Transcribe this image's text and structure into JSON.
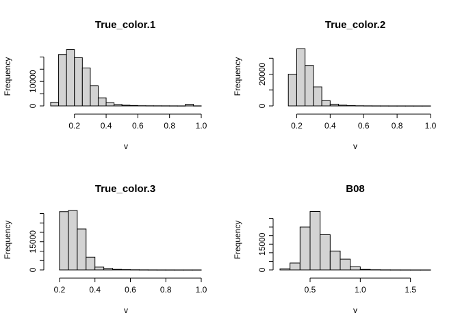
{
  "chart_data": [
    {
      "type": "bar",
      "title": "True_color.1",
      "xlabel": "v",
      "ylabel": "Frequency",
      "bin_edges": [
        0.05,
        0.1,
        0.15,
        0.2,
        0.25,
        0.3,
        0.35,
        0.4,
        0.45,
        0.5,
        0.55,
        0.6,
        0.65,
        0.7,
        0.75,
        0.8,
        0.85,
        0.9,
        0.95,
        1.0
      ],
      "values": [
        1500,
        21000,
        23000,
        19700,
        15500,
        8200,
        3300,
        1300,
        600,
        300,
        180,
        80,
        60,
        50,
        40,
        30,
        20,
        700,
        30
      ],
      "xlim": [
        0.05,
        1.0
      ],
      "x_ticks": [
        0.2,
        0.4,
        0.6,
        0.8,
        1.0
      ],
      "x_tick_labels": [
        "0.2",
        "0.4",
        "0.6",
        "0.8",
        "1.0"
      ],
      "y_ticks": [
        0,
        5000,
        10000,
        15000,
        20000
      ],
      "y_tick_labels": [
        "0",
        "",
        "10000",
        "",
        ""
      ],
      "ylim": [
        0,
        24000
      ]
    },
    {
      "type": "bar",
      "title": "True_color.2",
      "xlabel": "v",
      "ylabel": "Frequency",
      "bin_edges": [
        0.15,
        0.2,
        0.25,
        0.3,
        0.35,
        0.4,
        0.45,
        0.5,
        0.55,
        0.6,
        0.65,
        0.7,
        0.75,
        0.8,
        0.85,
        0.9,
        0.95,
        1.0
      ],
      "values": [
        20000,
        36000,
        25500,
        12000,
        3300,
        1100,
        500,
        200,
        100,
        60,
        40,
        30,
        20,
        20,
        15,
        10,
        10
      ],
      "xlim": [
        0.1,
        1.0
      ],
      "x_ticks": [
        0.2,
        0.4,
        0.6,
        0.8,
        1.0
      ],
      "x_tick_labels": [
        "0.2",
        "0.4",
        "0.6",
        "0.8",
        "1.0"
      ],
      "y_ticks": [
        0,
        10000,
        20000,
        30000
      ],
      "y_tick_labels": [
        "0",
        "",
        "20000",
        ""
      ],
      "ylim": [
        0,
        37000
      ]
    },
    {
      "type": "bar",
      "title": "True_color.3",
      "xlabel": "v",
      "ylabel": "Frequency",
      "bin_edges": [
        0.2,
        0.25,
        0.3,
        0.35,
        0.4,
        0.45,
        0.5,
        0.55,
        0.6,
        0.65,
        0.7,
        0.75,
        0.8,
        0.85,
        0.9,
        0.95,
        1.0
      ],
      "values": [
        31000,
        31600,
        21800,
        6800,
        1500,
        800,
        300,
        150,
        80,
        50,
        30,
        20,
        15,
        10,
        10,
        10
      ],
      "xlim": [
        0.15,
        1.0
      ],
      "x_ticks": [
        0.2,
        0.4,
        0.6,
        0.8,
        1.0
      ],
      "x_tick_labels": [
        "0.2",
        "0.4",
        "0.6",
        "0.8",
        "1.0"
      ],
      "y_ticks": [
        0,
        5000,
        10000,
        15000,
        20000,
        25000,
        30000
      ],
      "y_tick_labels": [
        "0",
        "",
        "",
        "15000",
        "",
        "",
        ""
      ],
      "ylim": [
        0,
        32000
      ]
    },
    {
      "type": "bar",
      "title": "B08",
      "xlabel": "v",
      "ylabel": "Frequency",
      "bin_edges": [
        0.2,
        0.3,
        0.4,
        0.5,
        0.6,
        0.7,
        0.8,
        0.9,
        1.0,
        1.1,
        1.2,
        1.3,
        1.4,
        1.5,
        1.6,
        1.7
      ],
      "values": [
        600,
        4000,
        25000,
        34000,
        20500,
        11000,
        6300,
        1800,
        300,
        100,
        50,
        30,
        20,
        10,
        10
      ],
      "xlim": [
        0.2,
        1.7
      ],
      "x_ticks": [
        0.5,
        1.0,
        1.5
      ],
      "x_tick_labels": [
        "0.5",
        "1.0",
        "1.5"
      ],
      "y_ticks": [
        0,
        5000,
        10000,
        15000,
        20000,
        25000,
        30000
      ],
      "y_tick_labels": [
        "0",
        "",
        "",
        "15000",
        "",
        "",
        ""
      ],
      "ylim": [
        0,
        35000
      ]
    }
  ]
}
